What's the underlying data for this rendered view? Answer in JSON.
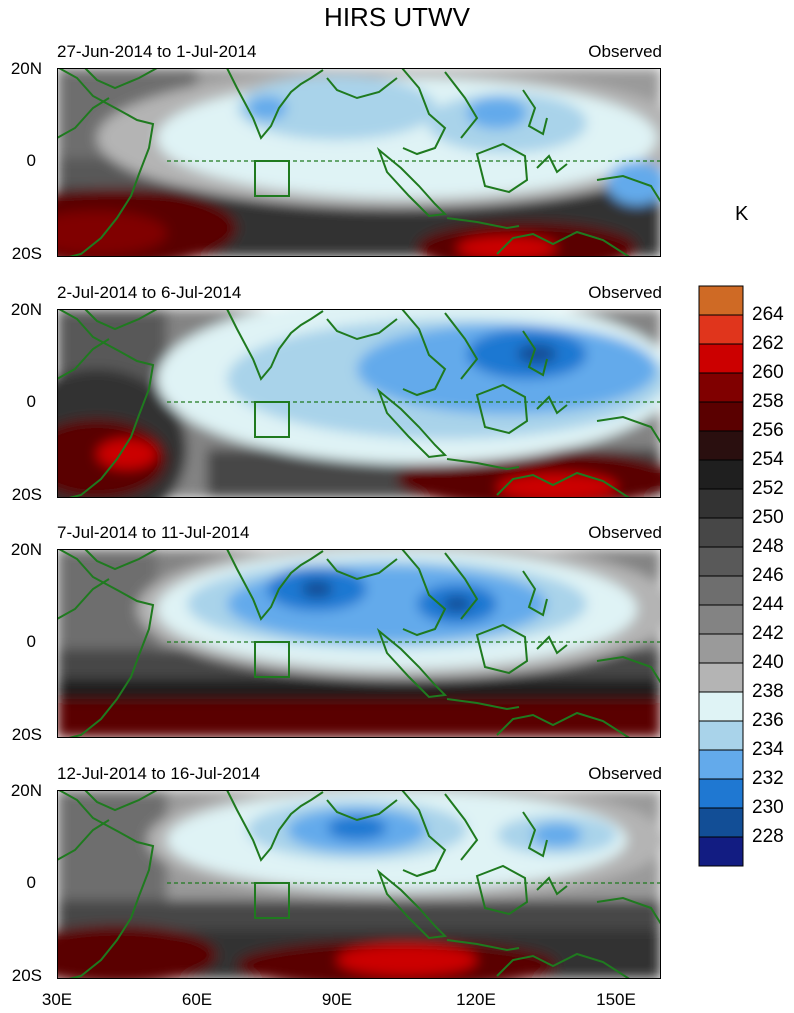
{
  "title": "HIRS UTWV",
  "panels": [
    {
      "date_range": "27-Jun-2014 to 1-Jul-2014",
      "label": "Observed"
    },
    {
      "date_range": "2-Jul-2014 to 6-Jul-2014",
      "label": "Observed"
    },
    {
      "date_range": "7-Jul-2014 to 11-Jul-2014",
      "label": "Observed"
    },
    {
      "date_range": "12-Jul-2014 to 16-Jul-2014",
      "label": "Observed"
    }
  ],
  "lat_labels": [
    "20N",
    "0",
    "20S"
  ],
  "lon_labels": [
    "30E",
    "60E",
    "90E",
    "120E",
    "150E"
  ],
  "colorbar": {
    "unit": "K",
    "levels": [
      "264",
      "262",
      "260",
      "258",
      "256",
      "254",
      "252",
      "250",
      "248",
      "246",
      "244",
      "242",
      "240",
      "238",
      "236",
      "234",
      "232",
      "230",
      "228"
    ],
    "colors": [
      "#cf6a25",
      "#e0351c",
      "#cc0000",
      "#800000",
      "#5a0000",
      "#2a0f0f",
      "#1f1f1f",
      "#333333",
      "#474747",
      "#595959",
      "#6e6e6e",
      "#838383",
      "#9a9a9a",
      "#b4b4b4",
      "#dff3f5",
      "#a9d3ea",
      "#63aaeb",
      "#1f78d2",
      "#124e96",
      "#121c82"
    ]
  },
  "chart_data": {
    "type": "heatmap",
    "variable": "UTWV",
    "units": "K",
    "x_range": [
      30,
      160
    ],
    "y_range": [
      -20,
      20
    ],
    "x_ticks": [
      "30E",
      "60E",
      "90E",
      "120E",
      "150E"
    ],
    "y_ticks": [
      "20N",
      "0",
      "20S"
    ],
    "legend_placement": "right",
    "panels": [
      "27-Jun-2014 to 1-Jul-2014",
      "2-Jul-2014 to 6-Jul-2014",
      "7-Jul-2014 to 11-Jul-2014",
      "12-Jul-2014 to 16-Jul-2014"
    ]
  }
}
